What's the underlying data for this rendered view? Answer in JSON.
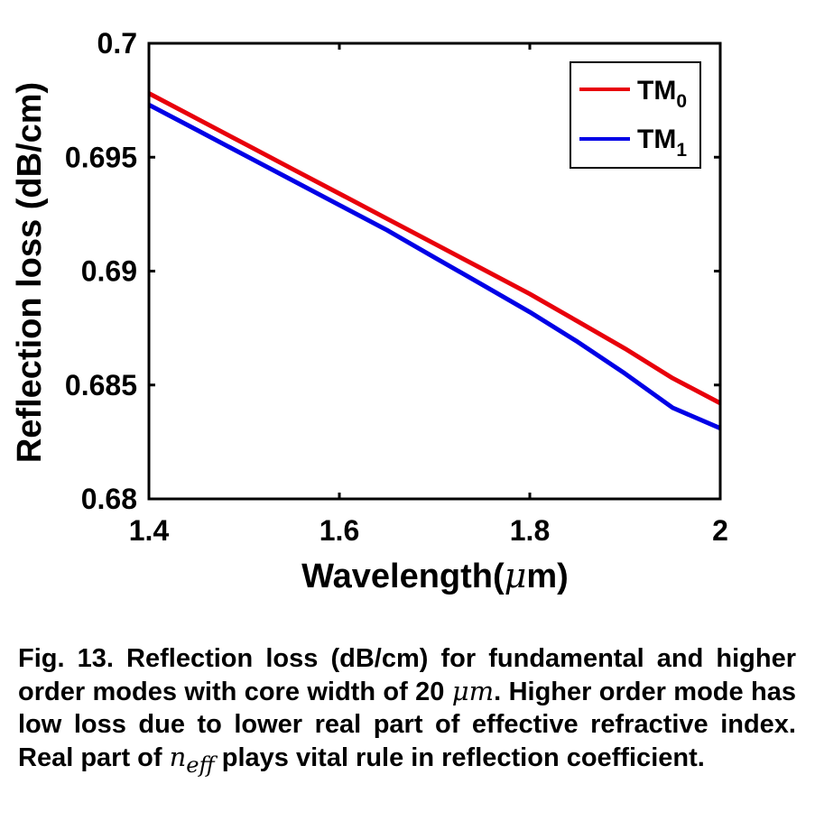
{
  "chart_data": {
    "type": "line",
    "xlabel_prefix": "Wavelength(",
    "xlabel_unit": "μ",
    "xlabel_suffix": "m)",
    "ylabel": "Reflection loss (dB/cm)",
    "xlim": [
      1.4,
      2.0
    ],
    "ylim": [
      0.68,
      0.7
    ],
    "xticks": [
      1.4,
      1.6,
      1.8,
      2.0
    ],
    "xtick_labels": [
      "1.4",
      "1.6",
      "1.8",
      "2"
    ],
    "yticks": [
      0.68,
      0.685,
      0.69,
      0.695,
      0.7
    ],
    "ytick_labels": [
      "0.68",
      "0.685",
      "0.69",
      "0.695",
      "0.7"
    ],
    "grid": false,
    "legend_position": "top-right",
    "series": [
      {
        "name": "TM0",
        "legend_main": "TM",
        "legend_sub": "0",
        "color": "#e8000b",
        "x": [
          1.4,
          1.45,
          1.5,
          1.55,
          1.6,
          1.65,
          1.7,
          1.75,
          1.8,
          1.85,
          1.9,
          1.95,
          2.0
        ],
        "y": [
          0.6978,
          0.6967,
          0.6956,
          0.6945,
          0.6934,
          0.6923,
          0.6912,
          0.6901,
          0.689,
          0.6878,
          0.6866,
          0.6853,
          0.6842
        ]
      },
      {
        "name": "TM1",
        "legend_main": "TM",
        "legend_sub": "1",
        "color": "#0000e6",
        "x": [
          1.4,
          1.45,
          1.5,
          1.55,
          1.6,
          1.65,
          1.7,
          1.75,
          1.8,
          1.85,
          1.9,
          1.95,
          2.0
        ],
        "y": [
          0.6973,
          0.6962,
          0.6951,
          0.694,
          0.6929,
          0.6918,
          0.6906,
          0.6894,
          0.6882,
          0.6869,
          0.6855,
          0.684,
          0.6831
        ]
      }
    ]
  },
  "caption": {
    "part1": "Fig. 13. Reflection loss (dB/cm) for fundamental and higher order modes with core width of 20 ",
    "math_um": "μm",
    "part2": ". Higher order mode has low loss due to lower real part of effective refractive index. Real part of ",
    "math_n": "n",
    "math_eff": "eff",
    "part3": " plays vital rule in reflection coefficient."
  }
}
